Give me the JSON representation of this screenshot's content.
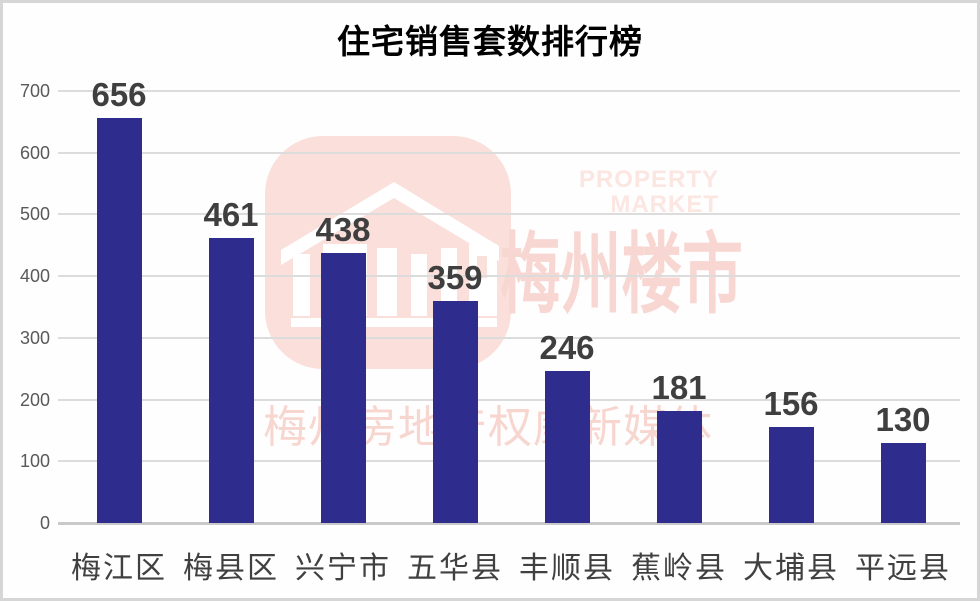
{
  "title": "住宅销售套数排行榜",
  "watermark": {
    "brand_cn": "梅州楼市",
    "brand_en_line1": "PROPERTY",
    "brand_en_line2": "MARKET",
    "tagline": "梅州房地产权威新媒体",
    "logo_icon": "building-icon",
    "color_logo_bg": "#fbdfda",
    "color_brand_text": "#f8d6d1",
    "color_en_text": "#fbe6e2",
    "color_tagline": "#f8d6d0"
  },
  "chart_data": {
    "type": "bar",
    "title": "住宅销售套数排行榜",
    "categories": [
      "梅江区",
      "梅县区",
      "兴宁市",
      "五华县",
      "丰顺县",
      "蕉岭县",
      "大埔县",
      "平远县"
    ],
    "values": [
      656,
      461,
      438,
      359,
      246,
      181,
      156,
      130
    ],
    "xlabel": "",
    "ylabel": "",
    "ylim": [
      0,
      700
    ],
    "y_ticks": [
      0,
      100,
      200,
      300,
      400,
      500,
      600,
      700
    ],
    "grid": true,
    "legend": false,
    "bar_color": "#2e2d8e",
    "data_label_color": "#3f3f3f",
    "tick_color": "#595959",
    "gridline_color": "#dcdcdc"
  }
}
